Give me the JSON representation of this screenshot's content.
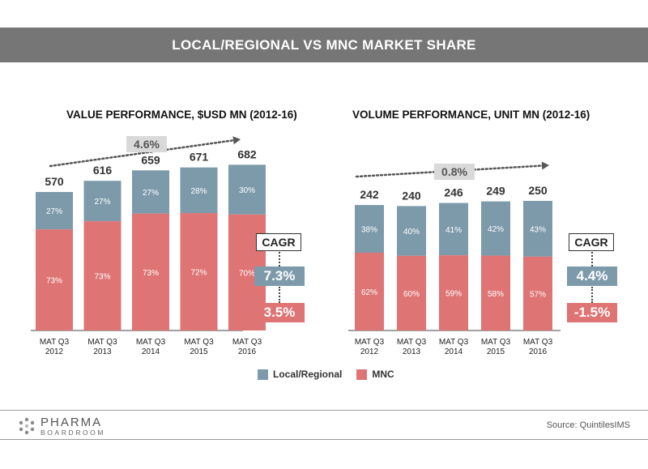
{
  "banner_title": "LOCAL/REGIONAL VS MNC MARKET SHARE",
  "colors": {
    "local": "#7d9aab",
    "mnc": "#de7474",
    "banner": "#767676"
  },
  "legend": {
    "local": "Local/Regional",
    "mnc": "MNC"
  },
  "cagr_label": "CAGR",
  "source": "Source:  QuintilesIMS",
  "logo": {
    "main": "PHARMA",
    "sub": "BOARDROOM",
    "icon": "hexagon-dots-icon"
  },
  "chart_data": [
    {
      "type": "bar",
      "title": "VALUE PERFORMANCE, $USD MN (2012-16)",
      "categories": [
        [
          "MAT Q3",
          "2012"
        ],
        [
          "MAT Q3",
          "2013"
        ],
        [
          "MAT Q3",
          "2014"
        ],
        [
          "MAT Q3",
          "2015"
        ],
        [
          "MAT Q3",
          "2016"
        ]
      ],
      "totals": [
        570,
        616,
        659,
        671,
        682
      ],
      "series": [
        {
          "name": "Local/Regional",
          "values": [
            27,
            27,
            27,
            28,
            30
          ]
        },
        {
          "name": "MNC",
          "values": [
            73,
            73,
            73,
            72,
            70
          ]
        }
      ],
      "overall_growth": "4.6%",
      "cagr": {
        "local": "7.3%",
        "mnc": "3.5%"
      }
    },
    {
      "type": "bar",
      "title": "VOLUME PERFORMANCE, UNIT MN (2012-16)",
      "categories": [
        [
          "MAT Q3",
          "2012"
        ],
        [
          "MAT Q3",
          "2013"
        ],
        [
          "MAT Q3",
          "2014"
        ],
        [
          "MAT Q3",
          "2015"
        ],
        [
          "MAT Q3",
          "2016"
        ]
      ],
      "totals": [
        242,
        240,
        246,
        249,
        250
      ],
      "series": [
        {
          "name": "Local/Regional",
          "values": [
            38,
            40,
            41,
            42,
            43
          ]
        },
        {
          "name": "MNC",
          "values": [
            62,
            60,
            59,
            58,
            57
          ]
        }
      ],
      "overall_growth": "0.8%",
      "cagr": {
        "local": "4.4%",
        "mnc": "-1.5%"
      }
    }
  ]
}
